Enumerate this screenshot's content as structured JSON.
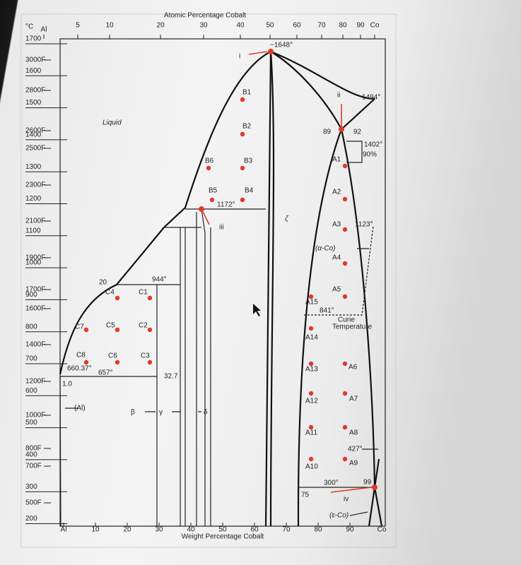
{
  "header": {
    "unit": "°C",
    "top_axis_title": "Atomic Percentage Cobalt",
    "bottom_axis_title": "Weight Percentage Cobalt"
  },
  "top_ticks": [
    "Al",
    "5",
    "10",
    "20",
    "30",
    "40",
    "50",
    "60",
    "70",
    "80",
    "90",
    "Co"
  ],
  "bottom_ticks": [
    "Al",
    "10",
    "20",
    "30",
    "40",
    "50",
    "60",
    "70",
    "80",
    "90",
    "Co"
  ],
  "celsius_ticks": [
    "1700",
    "1600",
    "1500",
    "1400",
    "1300",
    "1200",
    "1100",
    "1000",
    "900",
    "800",
    "700",
    "600",
    "500",
    "400",
    "300",
    "200"
  ],
  "fahrenheit_ticks": [
    "3000F",
    "2800F",
    "2600F",
    "2500F",
    "2300F",
    "2100F",
    "1900F",
    "1700F",
    "1600F",
    "1400F",
    "1200F",
    "1000F",
    "800F",
    "700F",
    "500F"
  ],
  "labels": [
    "~1648°",
    "1494°",
    "89",
    "92",
    "1402°",
    "90%",
    "1172°",
    "1123°",
    "944°",
    "20",
    "841°",
    "Curie",
    "Temperature",
    "660.37°",
    "657°",
    "32.7",
    "1.0",
    "427°",
    "300°",
    "99",
    "75",
    "Liquid",
    "ζ",
    "(α-Co)",
    "(ε-Co)",
    "(Al)",
    "β",
    "γ",
    "δ",
    "i",
    "ii",
    "iii",
    "iv"
  ],
  "points": [
    "B1",
    "B2",
    "B6",
    "B3",
    "B5",
    "B4",
    "A1",
    "A2",
    "A3",
    "A4",
    "A5",
    "A15",
    "A14",
    "A13",
    "A6",
    "A12",
    "A7",
    "A11",
    "A8",
    "A10",
    "A9",
    "C7",
    "C5",
    "C2",
    "C4",
    "C1",
    "C8",
    "C6",
    "C3"
  ]
}
